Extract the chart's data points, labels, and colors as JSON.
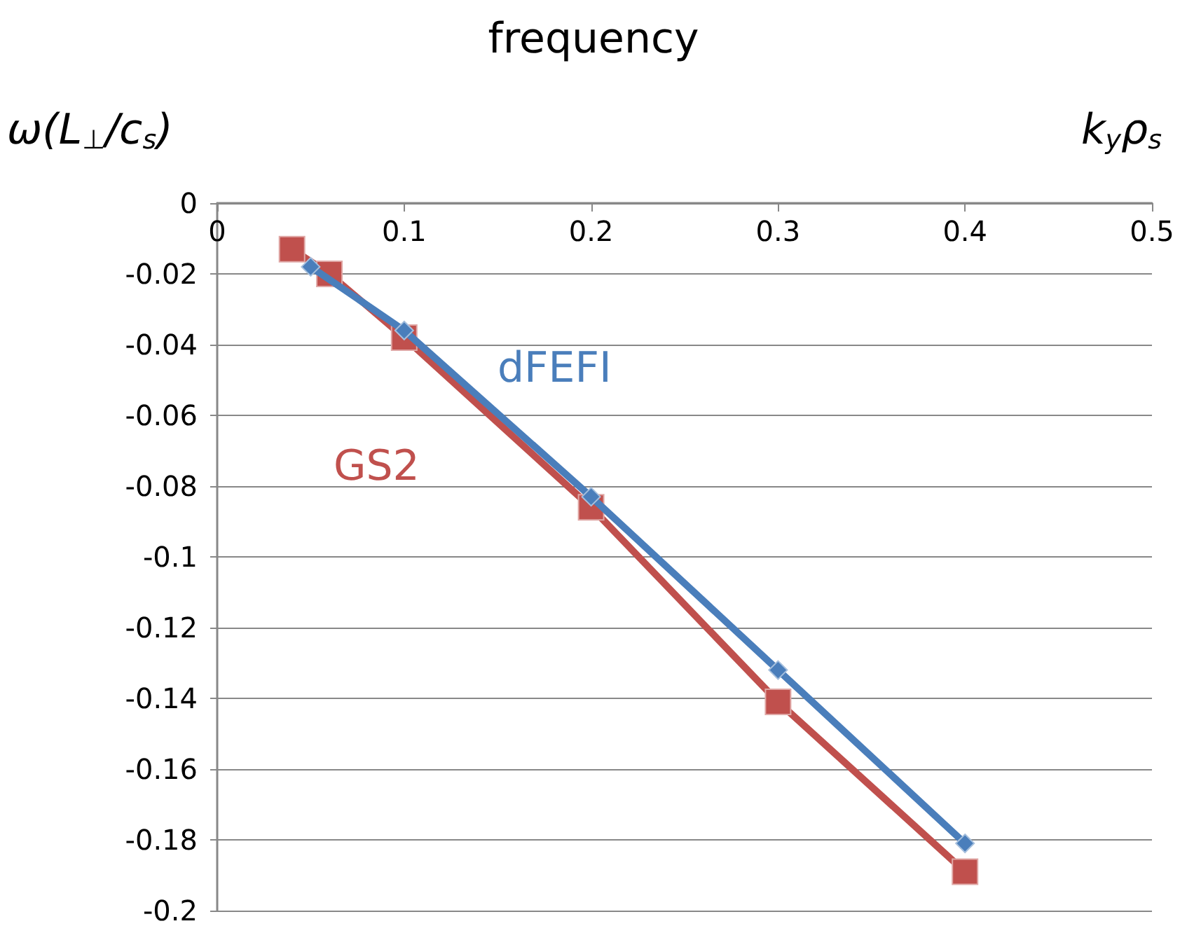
{
  "chart_data": {
    "type": "line",
    "title": "frequency",
    "ylabel": "ω(L$_{⊥}$/c$_{s}$)",
    "xlabel": "k$_{y}$ρ$_{s}$",
    "series": [
      {
        "name": "dFEFI",
        "color": "#4a7ebb",
        "x": [
          0.05,
          0.1,
          0.2,
          0.3,
          0.4
        ],
        "values": [
          -0.018,
          -0.036,
          -0.083,
          -0.132,
          -0.181
        ],
        "marker": "diamond"
      },
      {
        "name": "GS2",
        "color": "#c0504d",
        "x": [
          0.04,
          0.06,
          0.1,
          0.2,
          0.3,
          0.4
        ],
        "values": [
          -0.013,
          -0.02,
          -0.038,
          -0.086,
          -0.141,
          -0.189
        ],
        "marker": "square"
      }
    ],
    "xlim": [
      0,
      0.5
    ],
    "xticks": [
      0,
      0.1,
      0.2,
      0.3,
      0.4,
      0.5
    ],
    "ylim": [
      -0.2,
      0
    ],
    "yticks": [
      -0.2,
      -0.18,
      -0.16,
      -0.14,
      -0.12,
      -0.1,
      -0.08,
      -0.06,
      -0.04,
      -0.02,
      0
    ],
    "grid": "y",
    "legend": false,
    "line_style": "solid"
  }
}
